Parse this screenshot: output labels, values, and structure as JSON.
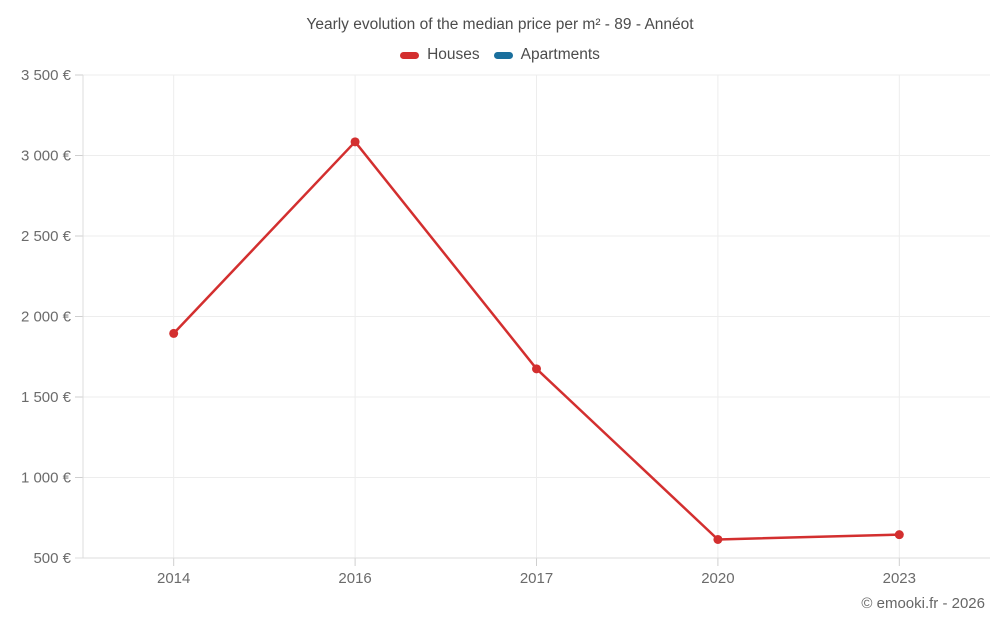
{
  "title": "Yearly evolution of the median price per m² - 89 - Annéot",
  "footer": "© emooki.fr - 2026",
  "legend": [
    {
      "label": "Houses",
      "color": "#d32f2f"
    },
    {
      "label": "Apartments",
      "color": "#1a6f9d"
    }
  ],
  "colors": {
    "houses": "#d32f2f",
    "apartments": "#1a6f9d",
    "grid": "#ededed",
    "axis": "#dcdcdc",
    "tick": "#cfcfcf",
    "axis_text": "#6b6b6b",
    "title_text": "#4c4c4c"
  },
  "chart_data": {
    "type": "line",
    "title": "Yearly evolution of the median price per m² - 89 - Annéot",
    "categories": [
      "2014",
      "2016",
      "2017",
      "2020",
      "2023"
    ],
    "series": [
      {
        "name": "Houses",
        "color": "#d32f2f",
        "values": [
          1895,
          3085,
          1675,
          615,
          645
        ]
      },
      {
        "name": "Apartments",
        "color": "#1a6f9d",
        "values": []
      }
    ],
    "xlabel": "",
    "ylabel": "",
    "ylim": [
      500,
      3500
    ],
    "yticks": [
      500,
      1000,
      1500,
      2000,
      2500,
      3000,
      3500
    ],
    "ytick_labels": [
      "500 €",
      "1 000 €",
      "1 500 €",
      "2 000 €",
      "2 500 €",
      "3 000 €",
      "3 500 €"
    ],
    "grid": true,
    "legend_position": "top",
    "marker": "circle"
  }
}
